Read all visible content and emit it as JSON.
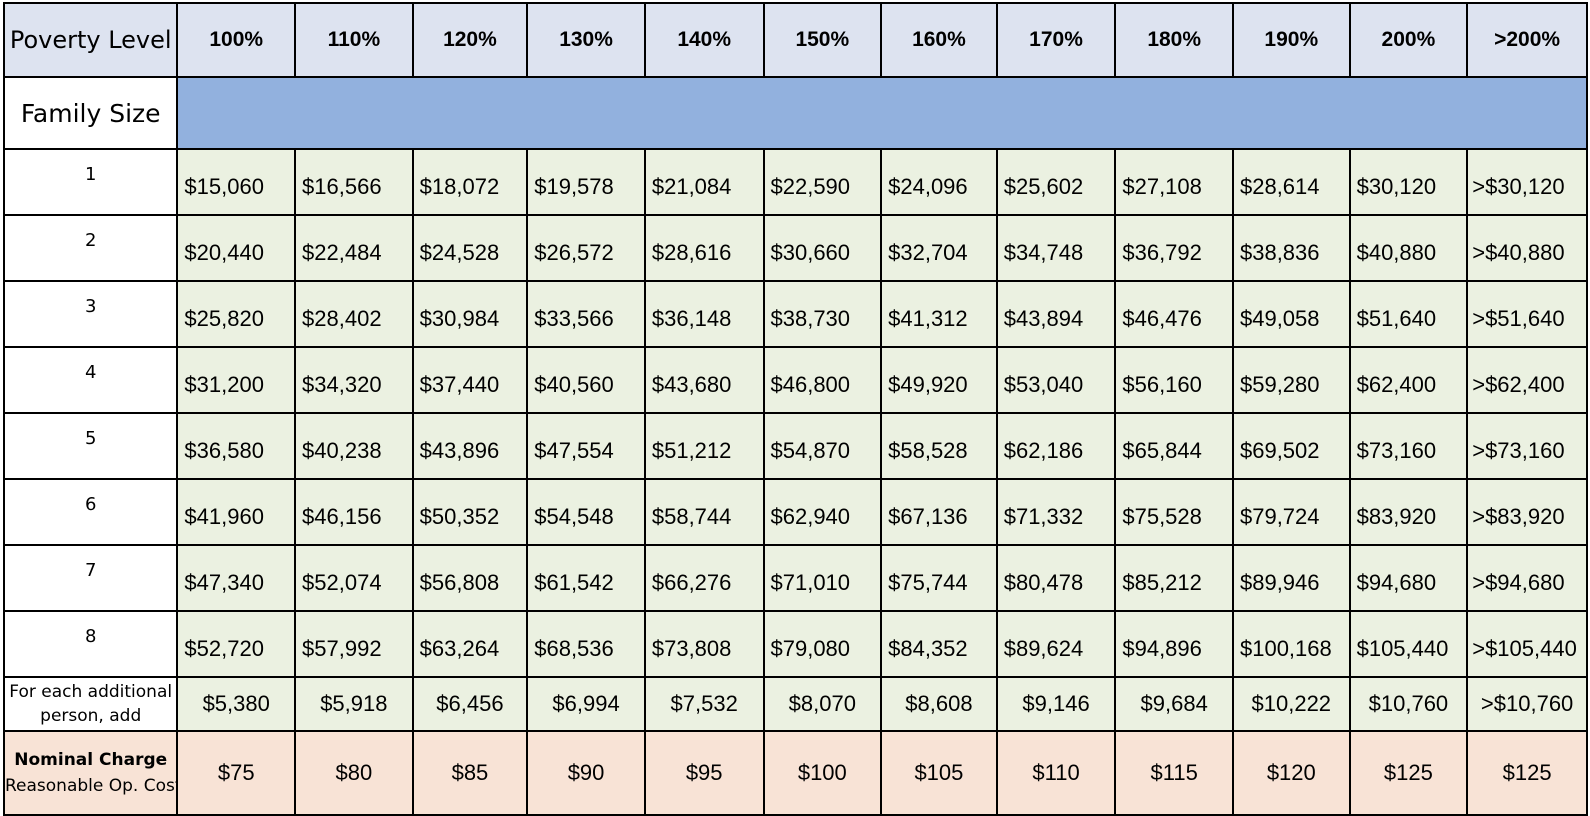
{
  "header": {
    "row_label": "Poverty Level",
    "levels": [
      "100%",
      "110%",
      "120%",
      "130%",
      "140%",
      "150%",
      "160%",
      "170%",
      "180%",
      "190%",
      "200%",
      ">200%"
    ]
  },
  "family_size_label": "Family Size",
  "rows": [
    {
      "size": "1",
      "values": [
        "$15,060",
        "$16,566",
        "$18,072",
        "$19,578",
        "$21,084",
        "$22,590",
        "$24,096",
        "$25,602",
        "$27,108",
        "$28,614",
        "$30,120",
        ">$30,120"
      ]
    },
    {
      "size": "2",
      "values": [
        "$20,440",
        "$22,484",
        "$24,528",
        "$26,572",
        "$28,616",
        "$30,660",
        "$32,704",
        "$34,748",
        "$36,792",
        "$38,836",
        "$40,880",
        ">$40,880"
      ]
    },
    {
      "size": "3",
      "values": [
        "$25,820",
        "$28,402",
        "$30,984",
        "$33,566",
        "$36,148",
        "$38,730",
        "$41,312",
        "$43,894",
        "$46,476",
        "$49,058",
        "$51,640",
        ">$51,640"
      ]
    },
    {
      "size": "4",
      "values": [
        "$31,200",
        "$34,320",
        "$37,440",
        "$40,560",
        "$43,680",
        "$46,800",
        "$49,920",
        "$53,040",
        "$56,160",
        "$59,280",
        "$62,400",
        ">$62,400"
      ]
    },
    {
      "size": "5",
      "values": [
        "$36,580",
        "$40,238",
        "$43,896",
        "$47,554",
        "$51,212",
        "$54,870",
        "$58,528",
        "$62,186",
        "$65,844",
        "$69,502",
        "$73,160",
        ">$73,160"
      ]
    },
    {
      "size": "6",
      "values": [
        "$41,960",
        "$46,156",
        "$50,352",
        "$54,548",
        "$58,744",
        "$62,940",
        "$67,136",
        "$71,332",
        "$75,528",
        "$79,724",
        "$83,920",
        ">$83,920"
      ]
    },
    {
      "size": "7",
      "values": [
        "$47,340",
        "$52,074",
        "$56,808",
        "$61,542",
        "$66,276",
        "$71,010",
        "$75,744",
        "$80,478",
        "$85,212",
        "$89,946",
        "$94,680",
        ">$94,680"
      ]
    },
    {
      "size": "8",
      "values": [
        "$52,720",
        "$57,992",
        "$63,264",
        "$68,536",
        "$73,808",
        "$79,080",
        "$84,352",
        "$89,624",
        "$94,896",
        "$100,168",
        "$105,440",
        ">$105,440"
      ]
    }
  ],
  "additional": {
    "label": "For each additional person, add",
    "values": [
      "$5,380",
      "$5,918",
      "$6,456",
      "$6,994",
      "$7,532",
      "$8,070",
      "$8,608",
      "$9,146",
      "$9,684",
      "$10,222",
      "$10,760",
      ">$10,760"
    ]
  },
  "nominal": {
    "title": "Nominal Charge",
    "subtitle": "Reasonable Op. Cost",
    "values": [
      "$75",
      "$80",
      "$85",
      "$90",
      "$95",
      "$100",
      "$105",
      "$110",
      "$115",
      "$120",
      "$125",
      "$125"
    ]
  },
  "colors": {
    "header_bg": "#dde3f0",
    "band_bg": "#92b1de",
    "data_bg": "#ebf1e1",
    "nominal_bg": "#f8e3d6"
  }
}
